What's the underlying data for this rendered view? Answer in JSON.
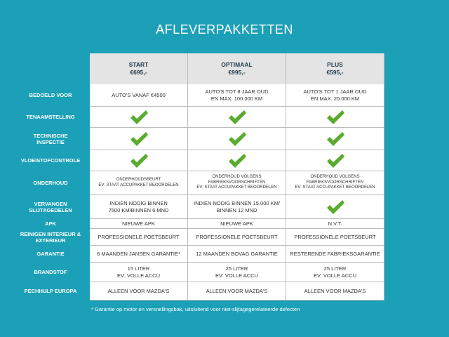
{
  "header": {
    "title": "AFLEVERPAKKETTEN"
  },
  "table": {
    "columns": [
      [
        "START",
        "€695,-"
      ],
      [
        "OPTIMAAL",
        "€995,-"
      ],
      [
        "PLUS",
        "€595,-"
      ]
    ],
    "rows": [
      {
        "label": [
          "BEDOELD VOOR"
        ],
        "cells": [
          [
            "AUTO'S VANAF €4500"
          ],
          [
            "AUTO'S TOT 8 JAAR OUD",
            "EN MAX. 100.000 KM"
          ],
          [
            "AUTO'S TOT 1 JAAR OUD",
            "EN MAX. 20.000 KM"
          ]
        ]
      },
      {
        "label": [
          "TENAAMSTELLING"
        ],
        "cells": [
          null,
          null,
          null
        ]
      },
      {
        "label": [
          "TECHNISCHE",
          "INSPECTIE"
        ],
        "cells": [
          null,
          null,
          null
        ]
      },
      {
        "label": [
          "VLOEISTOFCONTROLE"
        ],
        "cells": [
          null,
          null,
          null
        ]
      },
      {
        "label": [
          "ONDERHOUD"
        ],
        "cells": [
          [
            "ONDERHOUDSBEURT",
            "EV: STAAT ACCUPAKKET BEOORDELEN"
          ],
          [
            "ONDERHOUD VOLGENS",
            "FABRIEKSVOORSCHRIFTEN",
            "EV: STAAT ACCUPAKKET BEOORDELEN"
          ],
          [
            "ONDERHOUD VOLGENS",
            "FABRIEKSVOORSCHRIFTEN",
            "EV: STAAT ACCUPAKKET BEOORDELEN"
          ]
        ]
      },
      {
        "label": [
          "VERVANGEN",
          "SLIJTAGEDELEN"
        ],
        "cells": [
          [
            "INDIEN NODIG BINNEN",
            "7500 KM/BINNEN 6 MND"
          ],
          [
            "INDIEN NODIG BINNEN 15.000 KM/",
            "BINNEN 12 MND"
          ],
          null
        ]
      },
      {
        "label": [
          "APK"
        ],
        "cells": [
          [
            "NIEUWE APK"
          ],
          [
            "NIEUWE APK"
          ],
          [
            "N.V.T."
          ]
        ]
      },
      {
        "label": [
          "REINIGEN INTERIEUR &",
          "EXTERIEUR"
        ],
        "cells": [
          [
            "PROFESSIONELE POETSBEURT"
          ],
          [
            "PROFESSIONELE POETSBEURT"
          ],
          [
            "PROFESSIONELE POETSBEURT"
          ]
        ]
      },
      {
        "label": [
          "GARANTIE"
        ],
        "cells": [
          [
            "6 MAANDEN JANSEN GARANTIE*"
          ],
          [
            "12 MAANDEN BOVAG GARANTIE"
          ],
          [
            "RESTERENDE FABRIEKSGARANTIE"
          ]
        ]
      },
      {
        "label": [
          "BRANDSTOF"
        ],
        "cells": [
          [
            "15 LITER",
            "EV: VOLLE ACCU"
          ],
          [
            "25 LITER",
            "EV: VOLLE ACCU"
          ],
          [
            "25 LITER",
            "EV: VOLLE ACCU"
          ]
        ]
      },
      {
        "label": [
          "PECHHULP EUROPA"
        ],
        "cells": [
          [
            "ALLEEN VOOR MAZDA'S"
          ],
          [
            "ALLEEN VOOR MAZDA'S"
          ],
          [
            "ALLEEN VOOR MAZDA'S"
          ]
        ]
      }
    ]
  },
  "footnote": "* Garantie op motor en versnellingsbak, uitsluitend voor niet-slijtagegerelateerde defecten"
}
